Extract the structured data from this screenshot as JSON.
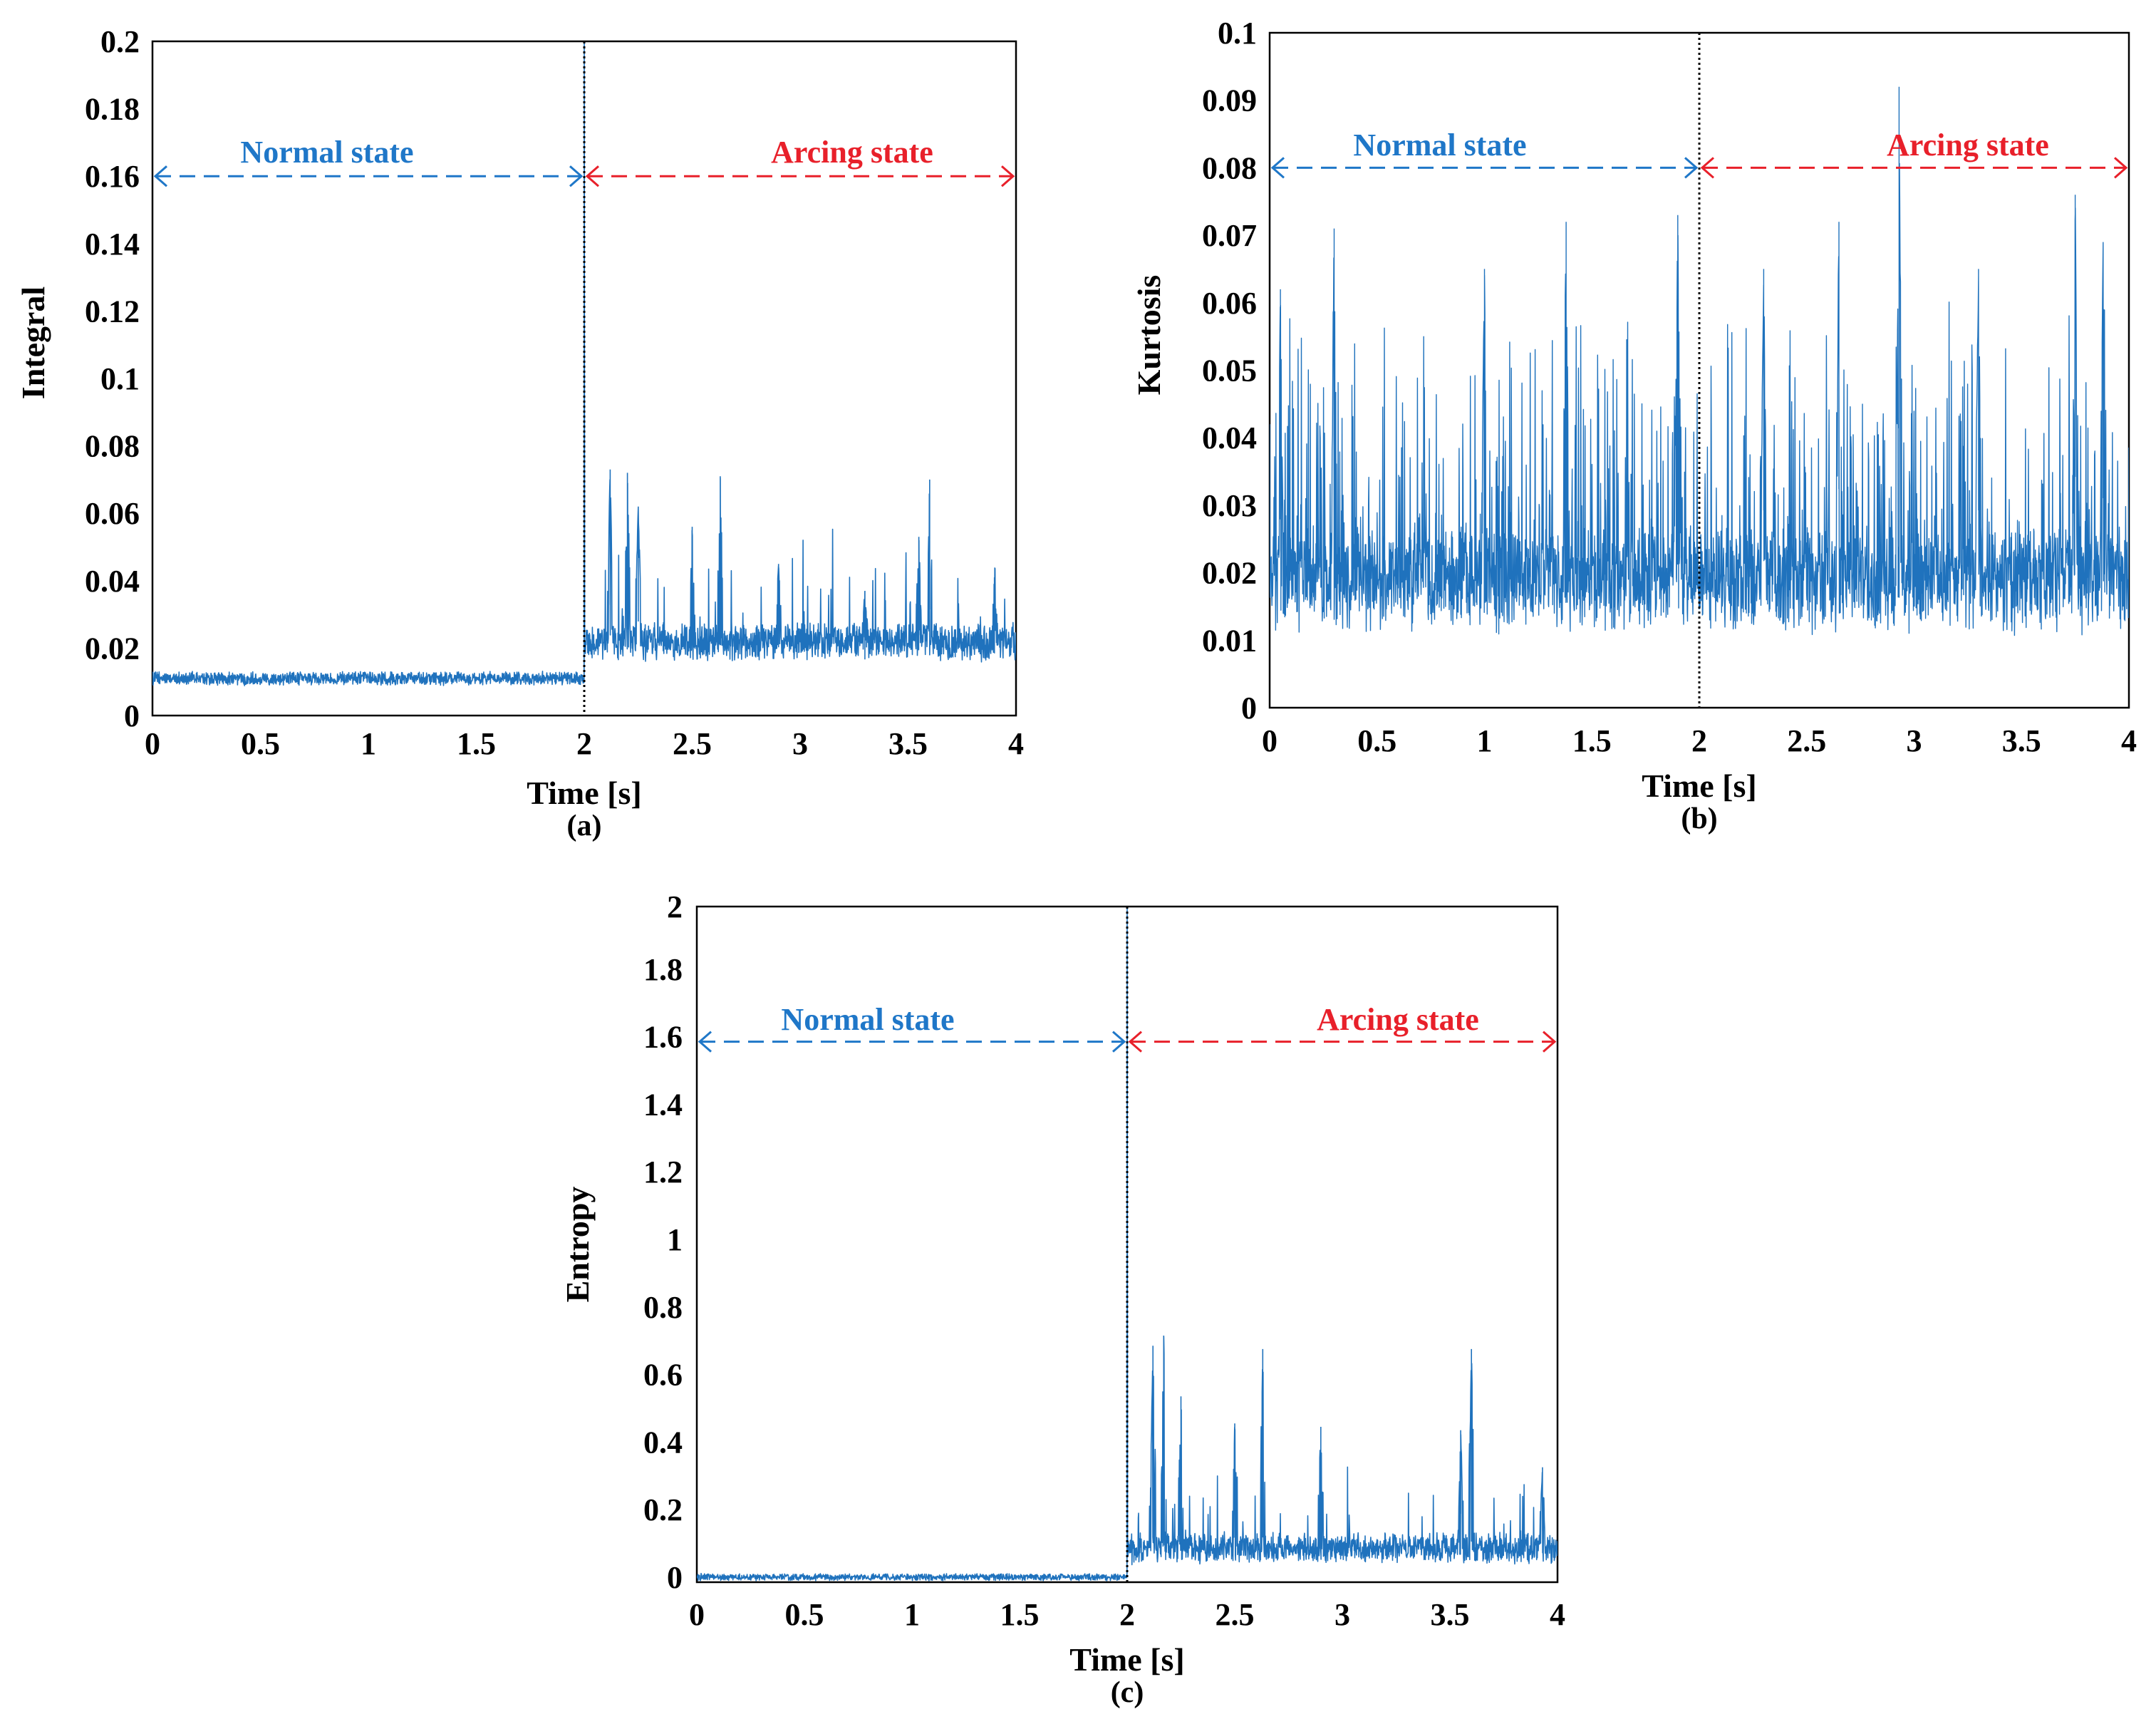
{
  "chart_data": [
    {
      "type": "line",
      "panel_label": "(a)",
      "xlabel": "Time [s]",
      "ylabel": "Integral",
      "xlim": [
        0,
        4
      ],
      "ylim": [
        0,
        0.2
      ],
      "xticks": [
        "0",
        "0.5",
        "1",
        "1.5",
        "2",
        "2.5",
        "3",
        "3.5",
        "4"
      ],
      "yticks": [
        "0",
        "0.02",
        "0.04",
        "0.06",
        "0.08",
        "0.1",
        "0.12",
        "0.14",
        "0.16",
        "0.18",
        "0.2"
      ],
      "divider_x": 2,
      "annotations": [
        {
          "text": "Normal state",
          "color": "#1f77c8",
          "x_from": 0,
          "x_to": 2,
          "arrow_y": 0.16
        },
        {
          "text": "Arcing state",
          "color": "#e8202a",
          "x_from": 2,
          "x_to": 4,
          "arrow_y": 0.16
        }
      ],
      "series": [
        {
          "name": "Integral",
          "color": "#1f72bd",
          "segments": [
            {
              "x_start": 0,
              "x_end": 2,
              "base": 0.011,
              "noise": 0.0016,
              "spike_rate": 0,
              "spike_max": 0
            },
            {
              "x_start": 2,
              "x_end": 4,
              "base": 0.022,
              "noise": 0.0045,
              "spike_rate": 0.06,
              "spike_max": 0.03
            }
          ],
          "jump_peak": 0.2,
          "peaks": [
            {
              "x": 2.12,
              "y": 0.073
            },
            {
              "x": 2.2,
              "y": 0.072
            },
            {
              "x": 2.25,
              "y": 0.062
            },
            {
              "x": 2.5,
              "y": 0.056
            },
            {
              "x": 2.63,
              "y": 0.071
            },
            {
              "x": 2.9,
              "y": 0.045
            },
            {
              "x": 3.3,
              "y": 0.037
            },
            {
              "x": 3.55,
              "y": 0.053
            },
            {
              "x": 3.6,
              "y": 0.07
            },
            {
              "x": 3.9,
              "y": 0.041
            }
          ]
        }
      ]
    },
    {
      "type": "line",
      "panel_label": "(b)",
      "xlabel": "Time [s]",
      "ylabel": "Kurtosis",
      "xlim": [
        0,
        4
      ],
      "ylim": [
        0,
        0.1
      ],
      "xticks": [
        "0",
        "0.5",
        "1",
        "1.5",
        "2",
        "2.5",
        "3",
        "3.5",
        "4"
      ],
      "yticks": [
        "0",
        "0.01",
        "0.02",
        "0.03",
        "0.04",
        "0.05",
        "0.06",
        "0.07",
        "0.08",
        "0.09",
        "0.1"
      ],
      "divider_x": 2,
      "annotations": [
        {
          "text": "Normal state",
          "color": "#1f77c8",
          "x_from": 0,
          "x_to": 2,
          "arrow_y": 0.08
        },
        {
          "text": "Arcing state",
          "color": "#e8202a",
          "x_from": 2,
          "x_to": 4,
          "arrow_y": 0.08
        }
      ],
      "series": [
        {
          "name": "Kurtosis",
          "color": "#1f72bd",
          "segments": [
            {
              "x_start": 0,
              "x_end": 4,
              "base": 0.019,
              "noise": 0.006,
              "spike_rate": 0.22,
              "spike_max": 0.035
            }
          ],
          "jump_peak": null,
          "peaks": [
            {
              "x": 0.05,
              "y": 0.062
            },
            {
              "x": 0.3,
              "y": 0.071
            },
            {
              "x": 1.0,
              "y": 0.065
            },
            {
              "x": 1.38,
              "y": 0.072
            },
            {
              "x": 1.9,
              "y": 0.073
            },
            {
              "x": 2.3,
              "y": 0.065
            },
            {
              "x": 2.65,
              "y": 0.072
            },
            {
              "x": 2.93,
              "y": 0.092
            },
            {
              "x": 3.3,
              "y": 0.065
            },
            {
              "x": 3.75,
              "y": 0.076
            },
            {
              "x": 3.88,
              "y": 0.069
            }
          ]
        }
      ]
    },
    {
      "type": "line",
      "panel_label": "(c)",
      "xlabel": "Time [s]",
      "ylabel": "Entropy",
      "xlim": [
        0,
        4
      ],
      "ylim": [
        0,
        2
      ],
      "xticks": [
        "0",
        "0.5",
        "1",
        "1.5",
        "2",
        "2.5",
        "3",
        "3.5",
        "4"
      ],
      "yticks": [
        "0",
        "0.2",
        "0.4",
        "0.6",
        "0.8",
        "1",
        "1.2",
        "1.4",
        "1.6",
        "1.8",
        "2"
      ],
      "divider_x": 2,
      "annotations": [
        {
          "text": "Normal state",
          "color": "#1f77c8",
          "x_from": 0,
          "x_to": 2,
          "arrow_y": 1.6
        },
        {
          "text": "Arcing state",
          "color": "#e8202a",
          "x_from": 2,
          "x_to": 4,
          "arrow_y": 1.6
        }
      ],
      "series": [
        {
          "name": "Entropy",
          "color": "#1f72bd",
          "segments": [
            {
              "x_start": 0,
              "x_end": 2,
              "base": 0.015,
              "noise": 0.008,
              "spike_rate": 0,
              "spike_max": 0
            },
            {
              "x_start": 2,
              "x_end": 4,
              "base": 0.1,
              "noise": 0.035,
              "spike_rate": 0.06,
              "spike_max": 0.22
            }
          ],
          "jump_peak": 2.0,
          "peaks": [
            {
              "x": 2.12,
              "y": 0.7
            },
            {
              "x": 2.17,
              "y": 0.73
            },
            {
              "x": 2.25,
              "y": 0.55
            },
            {
              "x": 2.5,
              "y": 0.47
            },
            {
              "x": 2.63,
              "y": 0.69
            },
            {
              "x": 2.9,
              "y": 0.46
            },
            {
              "x": 3.55,
              "y": 0.45
            },
            {
              "x": 3.6,
              "y": 0.69
            },
            {
              "x": 3.93,
              "y": 0.34
            }
          ]
        }
      ]
    }
  ]
}
